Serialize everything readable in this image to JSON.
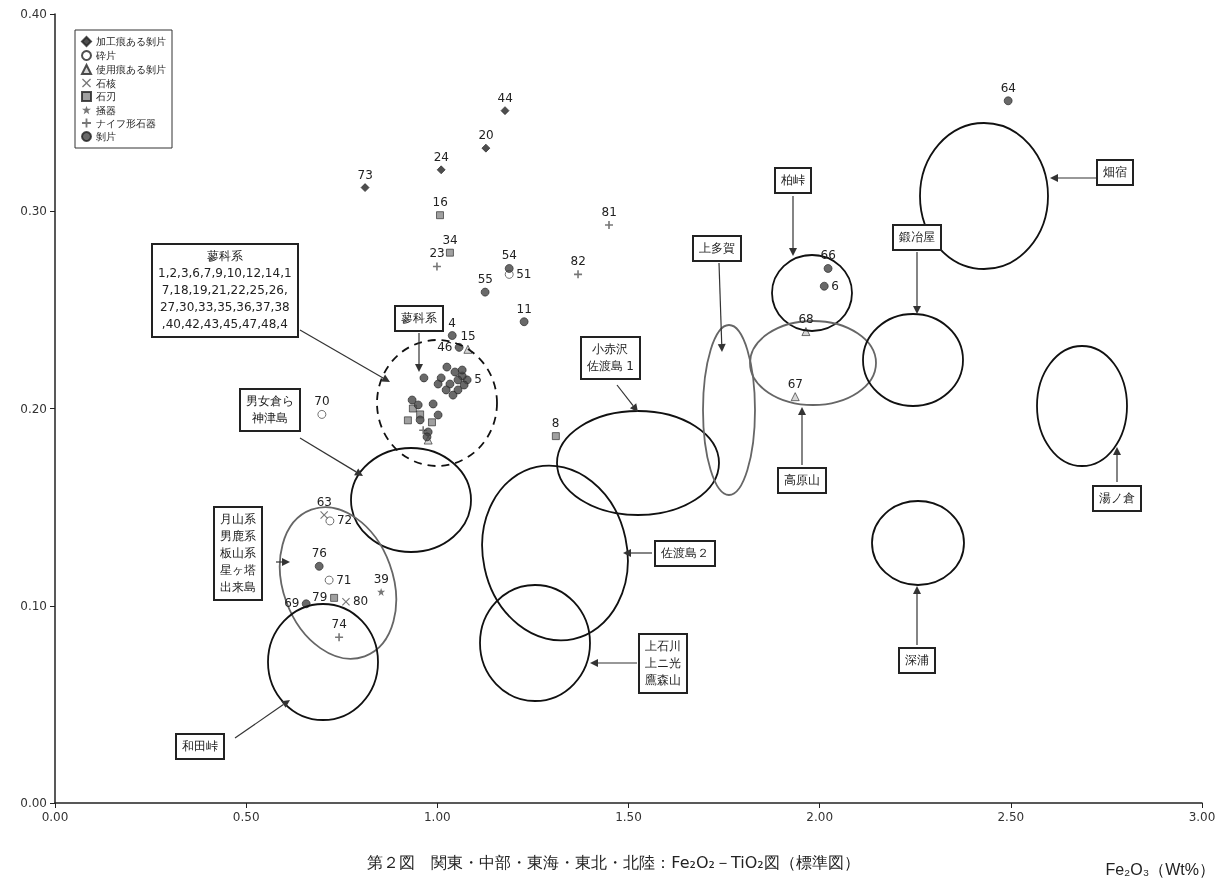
{
  "chart_data": {
    "type": "scatter",
    "title": "第２図　関東・中部・東海・東北・北陸：Fe₂O₂－TiO₂図（標準図）",
    "xlabel": "Fe₂O₃（Wt%）",
    "xlim": [
      0,
      3
    ],
    "xticks": [
      {
        "value": 0,
        "label": "0.00"
      },
      {
        "value": 0.5,
        "label": "0.50"
      },
      {
        "value": 1,
        "label": "1.00"
      },
      {
        "value": 1.5,
        "label": "1.50"
      },
      {
        "value": 2,
        "label": "2.00"
      },
      {
        "value": 2.5,
        "label": "2.50"
      },
      {
        "value": 3,
        "label": "3.00"
      }
    ],
    "ylim": [
      0,
      0.4
    ],
    "yticks": [
      {
        "value": 0,
        "label": "0.00"
      },
      {
        "value": 0.1,
        "label": "0.10"
      },
      {
        "value": 0.2,
        "label": "0.20"
      },
      {
        "value": 0.3,
        "label": "0.30"
      },
      {
        "value": 0.4,
        "label": "0.40"
      }
    ],
    "grid": false,
    "legend": "top left",
    "series": [
      {
        "name": "加工痕ある剝片",
        "marker": "diamond",
        "color": "#222222",
        "x": [
          1.177,
          1.127,
          1.01,
          0.811
        ],
        "values": [
          0.351,
          0.332,
          0.321,
          0.312
        ]
      },
      {
        "name": "砕片",
        "marker": "circle",
        "color": "#ffffff",
        "x": [
          1.188,
          0.698,
          0.719,
          0.717
        ],
        "values": [
          0.268,
          0.197,
          0.143,
          0.113
        ]
      },
      {
        "name": "使用痕ある剝片",
        "marker": "triangle",
        "color": "#cccccc",
        "x": [
          1.08,
          1.964,
          1.936,
          0.976
        ],
        "values": [
          0.23,
          0.239,
          0.206,
          0.184
        ]
      },
      {
        "name": "石核",
        "marker": "cross",
        "color": "#555555",
        "x": [
          0.704,
          0.761
        ],
        "values": [
          0.146,
          0.102
        ]
      },
      {
        "name": "石刃",
        "marker": "square",
        "color": "#888888",
        "x": [
          1.007,
          1.033,
          1.31,
          0.73,
          0.936,
          0.955,
          0.923,
          0.986
        ],
        "values": [
          0.298,
          0.279,
          0.186,
          0.104,
          0.2,
          0.197,
          0.194,
          0.193
        ]
      },
      {
        "name": "掻器",
        "marker": "star",
        "color": "#555555",
        "x": [
          0.853
        ],
        "values": [
          0.107
        ]
      },
      {
        "name": "ナイフ形石器",
        "marker": "plus",
        "color": "#555555",
        "x": [
          1.449,
          1.368,
          0.999,
          0.743,
          0.963
        ],
        "values": [
          0.293,
          0.268,
          0.272,
          0.084,
          0.189
        ]
      },
      {
        "name": "剝片",
        "marker": "circle",
        "color": "#444444",
        "x": [
          2.493,
          1.188,
          1.125,
          1.227,
          1.039,
          1.057,
          1.078,
          2.022,
          2.012,
          0.691,
          0.657,
          1.025,
          1.046,
          1.065,
          1.054,
          1.033,
          1.01,
          0.965,
          1.002,
          1.054,
          1.041,
          1.023,
          1.07,
          1.065,
          0.934,
          0.95,
          0.989,
          0.955,
          1.002,
          0.976,
          0.973
        ],
        "values": [
          0.356,
          0.271,
          0.259,
          0.244,
          0.237,
          0.231,
          0.2145,
          0.271,
          0.262,
          0.12,
          0.101,
          0.221,
          0.2185,
          0.2165,
          0.2145,
          0.2124,
          0.2155,
          0.2155,
          0.2124,
          0.2094,
          0.2068,
          0.2094,
          0.2119,
          0.2195,
          0.2043,
          0.2018,
          0.2023,
          0.1942,
          0.1967,
          0.1881,
          0.1856
        ]
      }
    ],
    "annotations": [
      {
        "text": "44",
        "x": 1.177,
        "y": 0.351
      },
      {
        "text": "20",
        "x": 1.127,
        "y": 0.332
      },
      {
        "text": "24",
        "x": 1.01,
        "y": 0.321
      },
      {
        "text": "73",
        "x": 0.811,
        "y": 0.312
      },
      {
        "text": "51",
        "x": 1.188,
        "y": 0.268
      },
      {
        "text": "70",
        "x": 0.698,
        "y": 0.197
      },
      {
        "text": "72",
        "x": 0.719,
        "y": 0.143
      },
      {
        "text": "71",
        "x": 0.717,
        "y": 0.113
      },
      {
        "text": "15",
        "x": 1.08,
        "y": 0.23
      },
      {
        "text": "68",
        "x": 1.964,
        "y": 0.239
      },
      {
        "text": "67",
        "x": 1.936,
        "y": 0.206
      },
      {
        "text": "63",
        "x": 0.704,
        "y": 0.146
      },
      {
        "text": "80",
        "x": 0.761,
        "y": 0.102
      },
      {
        "text": "16",
        "x": 1.007,
        "y": 0.298
      },
      {
        "text": "34",
        "x": 1.033,
        "y": 0.279
      },
      {
        "text": "8",
        "x": 1.31,
        "y": 0.186
      },
      {
        "text": "79",
        "x": 0.73,
        "y": 0.104
      },
      {
        "text": "39",
        "x": 0.853,
        "y": 0.107
      },
      {
        "text": "81",
        "x": 1.449,
        "y": 0.293
      },
      {
        "text": "82",
        "x": 1.368,
        "y": 0.268
      },
      {
        "text": "23",
        "x": 0.999,
        "y": 0.272
      },
      {
        "text": "74",
        "x": 0.743,
        "y": 0.084
      },
      {
        "text": "64",
        "x": 2.493,
        "y": 0.356
      },
      {
        "text": "54",
        "x": 1.188,
        "y": 0.271
      },
      {
        "text": "55",
        "x": 1.125,
        "y": 0.259
      },
      {
        "text": "11",
        "x": 1.227,
        "y": 0.244
      },
      {
        "text": "4",
        "x": 1.039,
        "y": 0.237
      },
      {
        "text": "46",
        "x": 1.057,
        "y": 0.231
      },
      {
        "text": "5",
        "x": 1.078,
        "y": 0.2145
      },
      {
        "text": "66",
        "x": 2.022,
        "y": 0.271
      },
      {
        "text": "6",
        "x": 2.012,
        "y": 0.262
      },
      {
        "text": "76",
        "x": 0.691,
        "y": 0.12
      },
      {
        "text": "69",
        "x": 0.657,
        "y": 0.101
      },
      "蓼科系",
      "蓼科系1,2,3,6,7,9,10,12,14,17,18,19,21,22,25,26,27,30,33,35,36,37,38,40,42,43,45,47,48,4",
      "男女倉ら神津島",
      "月山系男鹿系板山系星ヶ塔出来島",
      "和田峠",
      "佐渡島２",
      "上石川上ニ光鷹森山",
      "小赤沢佐渡島 1",
      "上多賀",
      "柏峠",
      "高原山",
      "鍛冶屋",
      "深浦",
      "畑宿",
      "湯ノ倉"
    ]
  }
}
